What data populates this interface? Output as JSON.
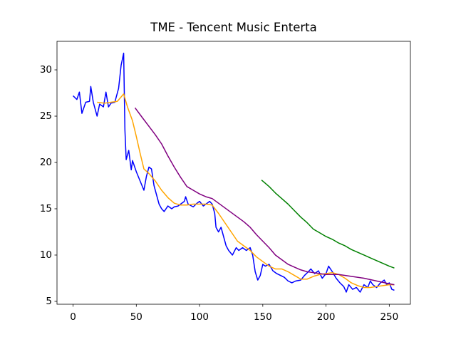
{
  "chart_data": {
    "type": "line",
    "title": "TME - Tencent Music Enterta",
    "xlim": [
      -12.7,
      266.7
    ],
    "ylim": [
      4.69,
      33.08
    ],
    "xticks": [
      0,
      50,
      100,
      150,
      200,
      250
    ],
    "yticks": [
      5,
      10,
      15,
      20,
      25,
      30
    ],
    "series": [
      {
        "color": "blue",
        "x": [
          0,
          3,
          5,
          7,
          10,
          13,
          14,
          16,
          19,
          21,
          24,
          26,
          28,
          30,
          33,
          36,
          38,
          40,
          41,
          42,
          44,
          46,
          47,
          50,
          53,
          56,
          58,
          60,
          62,
          64,
          66,
          68,
          70,
          72,
          75,
          78,
          80,
          83,
          85,
          88,
          89,
          91,
          95,
          98,
          100,
          103,
          106,
          108,
          110,
          112,
          113,
          115,
          117,
          119,
          121,
          123,
          126,
          129,
          131,
          134,
          137,
          140,
          142,
          144,
          146,
          148,
          150,
          152,
          155,
          158,
          161,
          164,
          167,
          170,
          173,
          176,
          180,
          183,
          186,
          188,
          191,
          194,
          197,
          200,
          202,
          205,
          208,
          211,
          214,
          216,
          218,
          221,
          224,
          227,
          230,
          233,
          235,
          237,
          240,
          243,
          246,
          248,
          250,
          252,
          254
        ],
        "values": [
          27.2,
          26.8,
          27.6,
          25.3,
          26.5,
          26.6,
          28.2,
          26.5,
          25.0,
          26.3,
          26.0,
          27.6,
          26.0,
          26.4,
          26.5,
          28.0,
          30.5,
          31.8,
          23.5,
          20.3,
          21.3,
          19.2,
          20.2,
          19.0,
          18.0,
          17.0,
          18.5,
          19.5,
          19.3,
          17.5,
          16.5,
          15.5,
          15.0,
          14.7,
          15.3,
          15.0,
          15.2,
          15.3,
          15.5,
          15.8,
          16.3,
          15.5,
          15.2,
          15.6,
          15.8,
          15.3,
          15.6,
          15.8,
          15.5,
          14.5,
          13.0,
          12.5,
          13.0,
          12.0,
          11.0,
          10.5,
          10.0,
          10.8,
          10.5,
          10.8,
          10.5,
          10.8,
          10.0,
          8.2,
          7.3,
          7.8,
          9.0,
          8.8,
          9.0,
          8.3,
          8.0,
          7.8,
          7.6,
          7.2,
          7.0,
          7.2,
          7.3,
          7.8,
          8.2,
          8.5,
          8.0,
          8.3,
          7.5,
          8.0,
          8.8,
          8.2,
          7.5,
          7.0,
          6.6,
          6.0,
          6.8,
          6.3,
          6.5,
          6.0,
          6.8,
          6.5,
          7.2,
          6.8,
          6.5,
          7.0,
          7.3,
          6.8,
          7.0,
          6.3,
          6.2
        ]
      },
      {
        "color": "orange",
        "x": [
          19,
          25,
          30,
          35,
          40,
          43,
          47,
          50,
          53,
          56,
          60,
          65,
          70,
          75,
          80,
          85,
          90,
          95,
          100,
          105,
          110,
          115,
          120,
          125,
          130,
          135,
          140,
          145,
          150,
          155,
          160,
          165,
          170,
          175,
          180,
          185,
          190,
          195,
          200,
          205,
          210,
          215,
          220,
          225,
          230,
          235,
          240,
          245,
          250,
          254
        ],
        "values": [
          26.5,
          26.4,
          26.5,
          26.6,
          27.4,
          26.0,
          24.5,
          22.8,
          21.0,
          19.3,
          18.8,
          18.0,
          17.0,
          16.2,
          15.6,
          15.4,
          15.4,
          15.5,
          15.5,
          15.5,
          15.4,
          14.5,
          13.5,
          12.5,
          11.5,
          11.0,
          10.5,
          9.8,
          9.3,
          8.8,
          8.5,
          8.5,
          8.2,
          7.8,
          7.4,
          7.4,
          7.7,
          7.9,
          8.0,
          8.1,
          7.9,
          7.5,
          7.0,
          6.7,
          6.5,
          6.5,
          6.6,
          6.7,
          6.8,
          6.8
        ]
      },
      {
        "color": "purple",
        "x": [
          49,
          55,
          60,
          65,
          70,
          75,
          80,
          85,
          90,
          95,
          100,
          105,
          110,
          115,
          120,
          125,
          130,
          135,
          140,
          145,
          150,
          155,
          160,
          165,
          170,
          175,
          180,
          185,
          190,
          200,
          210,
          220,
          230,
          240,
          250,
          254
        ],
        "values": [
          25.9,
          24.8,
          23.9,
          23.0,
          22.0,
          20.7,
          19.5,
          18.4,
          17.4,
          17.0,
          16.6,
          16.3,
          16.1,
          15.6,
          15.1,
          14.6,
          14.1,
          13.6,
          13.0,
          12.2,
          11.5,
          10.8,
          10.0,
          9.5,
          9.0,
          8.7,
          8.4,
          8.2,
          8.1,
          7.9,
          7.9,
          7.7,
          7.5,
          7.2,
          6.9,
          6.8
        ]
      },
      {
        "color": "green",
        "x": [
          149,
          155,
          160,
          165,
          170,
          175,
          180,
          185,
          190,
          195,
          200,
          205,
          210,
          215,
          220,
          225,
          230,
          235,
          240,
          245,
          250,
          254
        ],
        "values": [
          18.1,
          17.4,
          16.7,
          16.1,
          15.5,
          14.8,
          14.1,
          13.5,
          12.8,
          12.4,
          12.0,
          11.7,
          11.3,
          11.0,
          10.6,
          10.3,
          10.0,
          9.7,
          9.4,
          9.1,
          8.8,
          8.6
        ]
      }
    ]
  }
}
